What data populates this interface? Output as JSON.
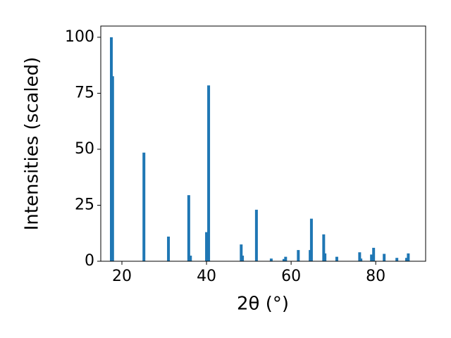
{
  "chart_data": {
    "type": "bar",
    "xlabel": "2θ (°)",
    "ylabel": "Intensities (scaled)",
    "x": [
      17.5,
      17.8,
      25.2,
      31,
      35.8,
      36.2,
      40.0,
      40.5,
      48.2,
      48.5,
      51.8,
      55.3,
      58.3,
      58.7,
      61.7,
      64.5,
      64.8,
      67.7,
      68,
      70.8,
      76.2,
      76.5,
      79,
      79.5,
      82,
      85,
      87.3,
      87.7
    ],
    "values": [
      100,
      82.6,
      48.5,
      11,
      29.5,
      2.5,
      13,
      78.5,
      7.5,
      2.5,
      23,
      1.2,
      1,
      2,
      5,
      5,
      19,
      12,
      3.5,
      2,
      4,
      1.2,
      3,
      6,
      3.3,
      1.5,
      1.5,
      3.5
    ],
    "color": "#1f77b4",
    "xlim": [
      15,
      91.8
    ],
    "ylim": [
      0,
      105
    ],
    "xticks": [
      20,
      40,
      60,
      80
    ],
    "yticks": [
      0,
      25,
      50,
      75,
      100
    ],
    "grid": false
  }
}
